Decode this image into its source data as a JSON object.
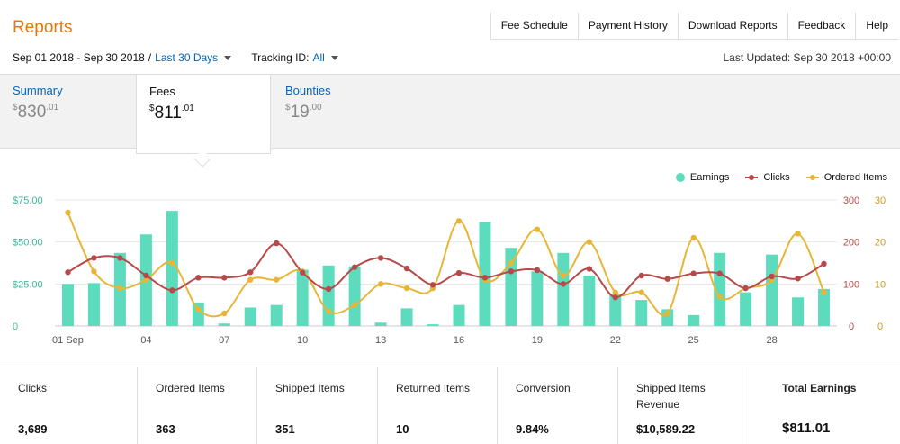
{
  "page": {
    "title": "Reports",
    "nav": [
      "Fee Schedule",
      "Payment History",
      "Download Reports",
      "Feedback",
      "Help"
    ],
    "date_range": "Sep 01 2018 - Sep 30 2018",
    "range_separator": "/",
    "range_selector": "Last 30 Days",
    "tracking_label": "Tracking ID:",
    "tracking_value": "All",
    "last_updated": "Last Updated: Sep 30 2018 +00:00"
  },
  "tabs": [
    {
      "label": "Summary",
      "currency": "$",
      "whole": "830",
      "cents": ".01",
      "active": false
    },
    {
      "label": "Fees",
      "currency": "$",
      "whole": "811",
      "cents": ".01",
      "active": true
    },
    {
      "label": "Bounties",
      "currency": "$",
      "whole": "19",
      "cents": ".00",
      "active": false
    }
  ],
  "legend": [
    {
      "name": "Earnings",
      "color": "#5ddcbd",
      "shape": "dot"
    },
    {
      "name": "Clicks",
      "color": "#b8494a",
      "shape": "line"
    },
    {
      "name": "Ordered Items",
      "color": "#e8b637",
      "shape": "line"
    }
  ],
  "chart_data": {
    "type": "bar",
    "x_tick_labels": [
      "01 Sep",
      "04",
      "07",
      "10",
      "13",
      "16",
      "19",
      "22",
      "25",
      "28"
    ],
    "left_axis_ticks": [
      "$75.00",
      "$50.00",
      "$25.00",
      "0"
    ],
    "left_axis_range": [
      0,
      75
    ],
    "right_axis_ticks_clicks": [
      "300",
      "200",
      "100",
      "0"
    ],
    "right_axis_range_clicks": [
      0,
      300
    ],
    "right_axis_ticks_items": [
      "30",
      "20",
      "10",
      "0"
    ],
    "right_axis_range_items": [
      0,
      30
    ],
    "categories": [
      "1",
      "2",
      "3",
      "4",
      "5",
      "6",
      "7",
      "8",
      "9",
      "10",
      "11",
      "12",
      "13",
      "14",
      "15",
      "16",
      "17",
      "18",
      "19",
      "20",
      "21",
      "22",
      "23",
      "24",
      "25",
      "26",
      "27",
      "28",
      "29",
      "30"
    ],
    "series": [
      {
        "name": "Earnings",
        "axis": "left",
        "type": "bar",
        "color": "#5ddcbd",
        "values": [
          25,
          25.5,
          43.5,
          54.5,
          68.5,
          14,
          1.5,
          11,
          12.5,
          33.5,
          36,
          35.5,
          2,
          10.5,
          1,
          12.5,
          62,
          46.5,
          32.5,
          43.5,
          30,
          19,
          15.5,
          10,
          6.5,
          43.5,
          20,
          42.5,
          17,
          22
        ]
      },
      {
        "name": "Clicks",
        "axis": "right",
        "type": "line",
        "color": "#b8494a",
        "values": [
          128,
          162,
          162,
          120,
          85,
          115,
          115,
          128,
          197,
          127,
          88,
          140,
          162,
          137,
          98,
          126,
          115,
          130,
          133,
          100,
          136,
          68,
          120,
          112,
          125,
          125,
          90,
          118,
          113,
          148
        ]
      },
      {
        "name": "Ordered Items",
        "axis": "right",
        "type": "line",
        "color": "#e8b637",
        "values": [
          27,
          13,
          9,
          11,
          15,
          4,
          3,
          11,
          11,
          13,
          3.5,
          5,
          10,
          9,
          9,
          25,
          11,
          15,
          23,
          12,
          20,
          8,
          8,
          3,
          21,
          7,
          9,
          11,
          22,
          8
        ]
      }
    ]
  },
  "metrics": [
    {
      "label": "Clicks",
      "value": "3,689"
    },
    {
      "label": "Ordered Items",
      "value": "363"
    },
    {
      "label": "Shipped Items",
      "value": "351"
    },
    {
      "label": "Returned Items",
      "value": "10"
    },
    {
      "label": "Conversion",
      "value": "9.84%"
    },
    {
      "label": "Shipped Items Revenue",
      "value": "$10,589.22"
    },
    {
      "label": "Total Earnings",
      "value": "$811.01"
    }
  ]
}
